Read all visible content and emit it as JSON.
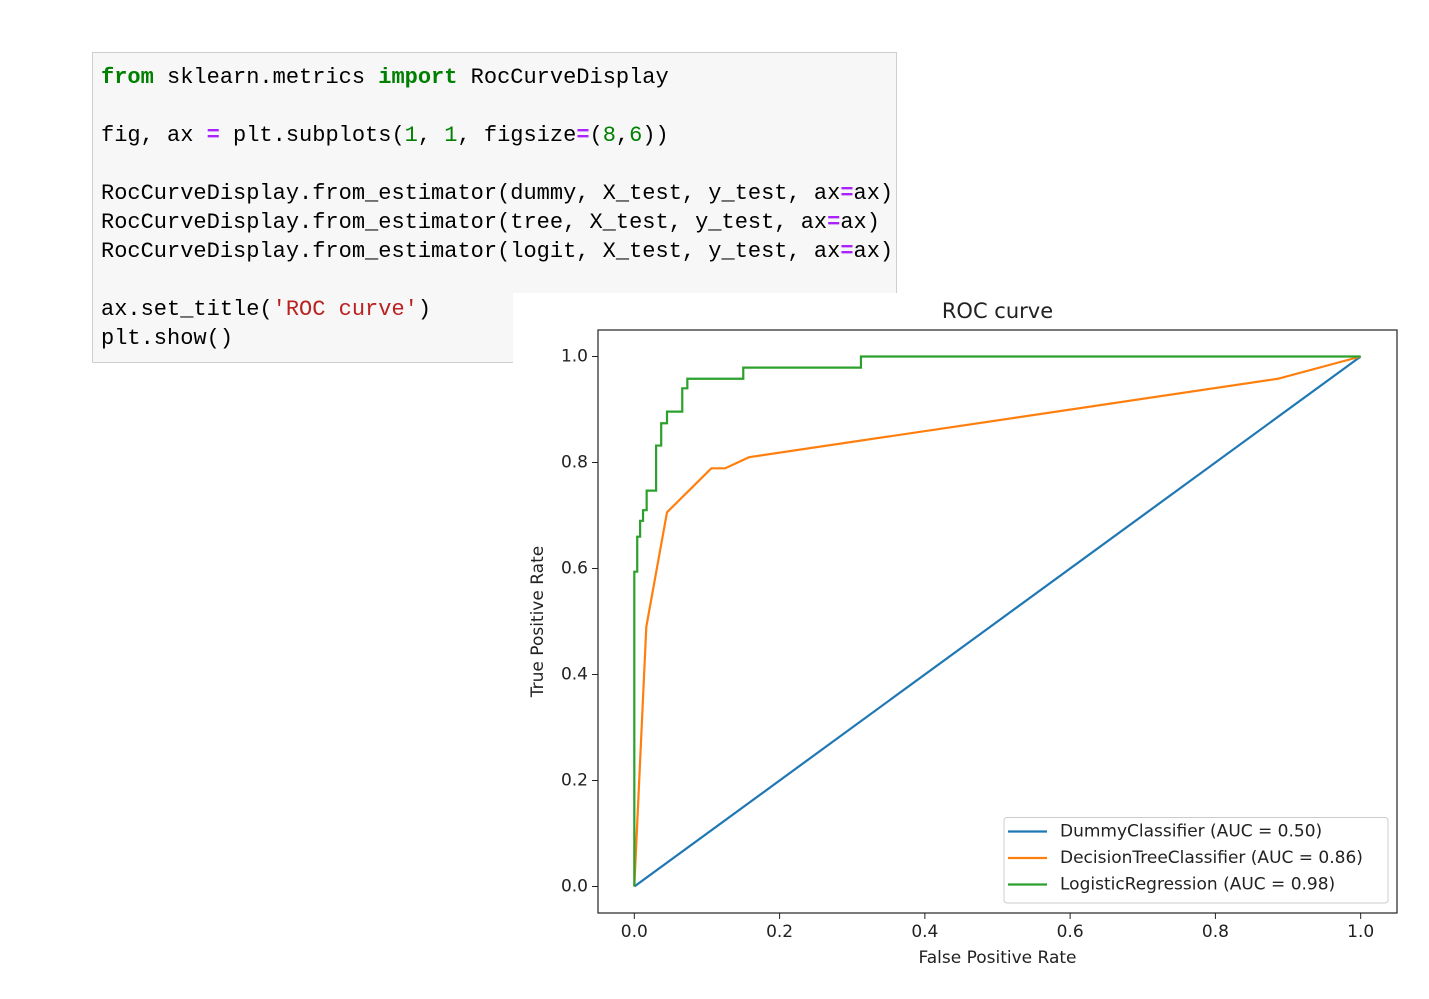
{
  "code": {
    "blocks": [
      [
        [
          {
            "text": "from",
            "color": "#008000",
            "bold": true
          },
          {
            "text": " sklearn.metrics "
          },
          {
            "text": "import",
            "color": "#008000",
            "bold": true
          },
          {
            "text": " RocCurveDisplay"
          }
        ]
      ],
      [
        [
          {
            "text": "fig, ax "
          },
          {
            "text": "=",
            "color": "#aa22ff",
            "bold": true
          },
          {
            "text": " plt.subplots("
          },
          {
            "text": "1",
            "color": "#008000"
          },
          {
            "text": ", "
          },
          {
            "text": "1",
            "color": "#008000"
          },
          {
            "text": ", figsize"
          },
          {
            "text": "=",
            "color": "#aa22ff",
            "bold": true
          },
          {
            "text": "("
          },
          {
            "text": "8",
            "color": "#008000"
          },
          {
            "text": ","
          },
          {
            "text": "6",
            "color": "#008000"
          },
          {
            "text": "))"
          }
        ]
      ],
      [
        [
          {
            "text": "RocCurveDisplay.from_estimator(dummy, X_test, y_test, ax"
          },
          {
            "text": "=",
            "color": "#aa22ff",
            "bold": true
          },
          {
            "text": "ax)"
          }
        ],
        [
          {
            "text": "RocCurveDisplay.from_estimator(tree, X_test, y_test, ax"
          },
          {
            "text": "=",
            "color": "#aa22ff",
            "bold": true
          },
          {
            "text": "ax)"
          }
        ],
        [
          {
            "text": "RocCurveDisplay.from_estimator(logit, X_test, y_test, ax"
          },
          {
            "text": "=",
            "color": "#aa22ff",
            "bold": true
          },
          {
            "text": "ax)"
          }
        ]
      ],
      [
        [
          {
            "text": "ax.set_title("
          },
          {
            "text": "'ROC curve'",
            "color": "#ba2121"
          },
          {
            "text": ")"
          }
        ],
        [
          {
            "text": "plt.show()"
          }
        ]
      ]
    ]
  },
  "chart_data": {
    "type": "line",
    "title": "ROC curve",
    "x_label": "False Positive Rate",
    "y_label": "True Positive Rate",
    "xlim": [
      -0.05,
      1.05
    ],
    "ylim": [
      -0.05,
      1.05
    ],
    "xticks": [
      {
        "value": 0,
        "label": "0.0"
      },
      0.2,
      0.4,
      0.6,
      0.8,
      {
        "value": 1,
        "label": "1.0"
      }
    ],
    "yticks": [
      {
        "value": 0,
        "label": "0.0"
      },
      0.2,
      0.4,
      0.6,
      0.8,
      {
        "value": 1,
        "label": "1.0"
      }
    ],
    "grid": false,
    "legend_loc": "lower right",
    "series": [
      {
        "name": "DummyClassifier (AUC = 0.50)",
        "color": "#1f77b4",
        "x": [
          0,
          1
        ],
        "values": [
          0,
          1
        ]
      },
      {
        "name": "DecisionTreeClassifier (AUC = 0.86)",
        "color": "#ff7f0e",
        "x": [
          0,
          0.0165,
          0.045,
          0.106,
          0.125,
          0.158,
          0.886,
          1
        ],
        "values": [
          0,
          0.49,
          0.706,
          0.789,
          0.789,
          0.81,
          0.958,
          1
        ]
      },
      {
        "name": "LogisticRegression (AUC = 0.98)",
        "color": "#2ca02c",
        "x": [
          0,
          0,
          0.004,
          0.004,
          0.008,
          0.008,
          0.012,
          0.012,
          0.017,
          0.017,
          0.03,
          0.03,
          0.037,
          0.037,
          0.045,
          0.045,
          0.066,
          0.066,
          0.073,
          0.073,
          0.15,
          0.15,
          0.312,
          0.312,
          1
        ],
        "values": [
          0,
          0.594,
          0.594,
          0.66,
          0.66,
          0.69,
          0.69,
          0.71,
          0.71,
          0.747,
          0.747,
          0.832,
          0.832,
          0.874,
          0.874,
          0.896,
          0.896,
          0.94,
          0.94,
          0.958,
          0.958,
          0.979,
          0.979,
          1,
          1
        ]
      }
    ]
  }
}
